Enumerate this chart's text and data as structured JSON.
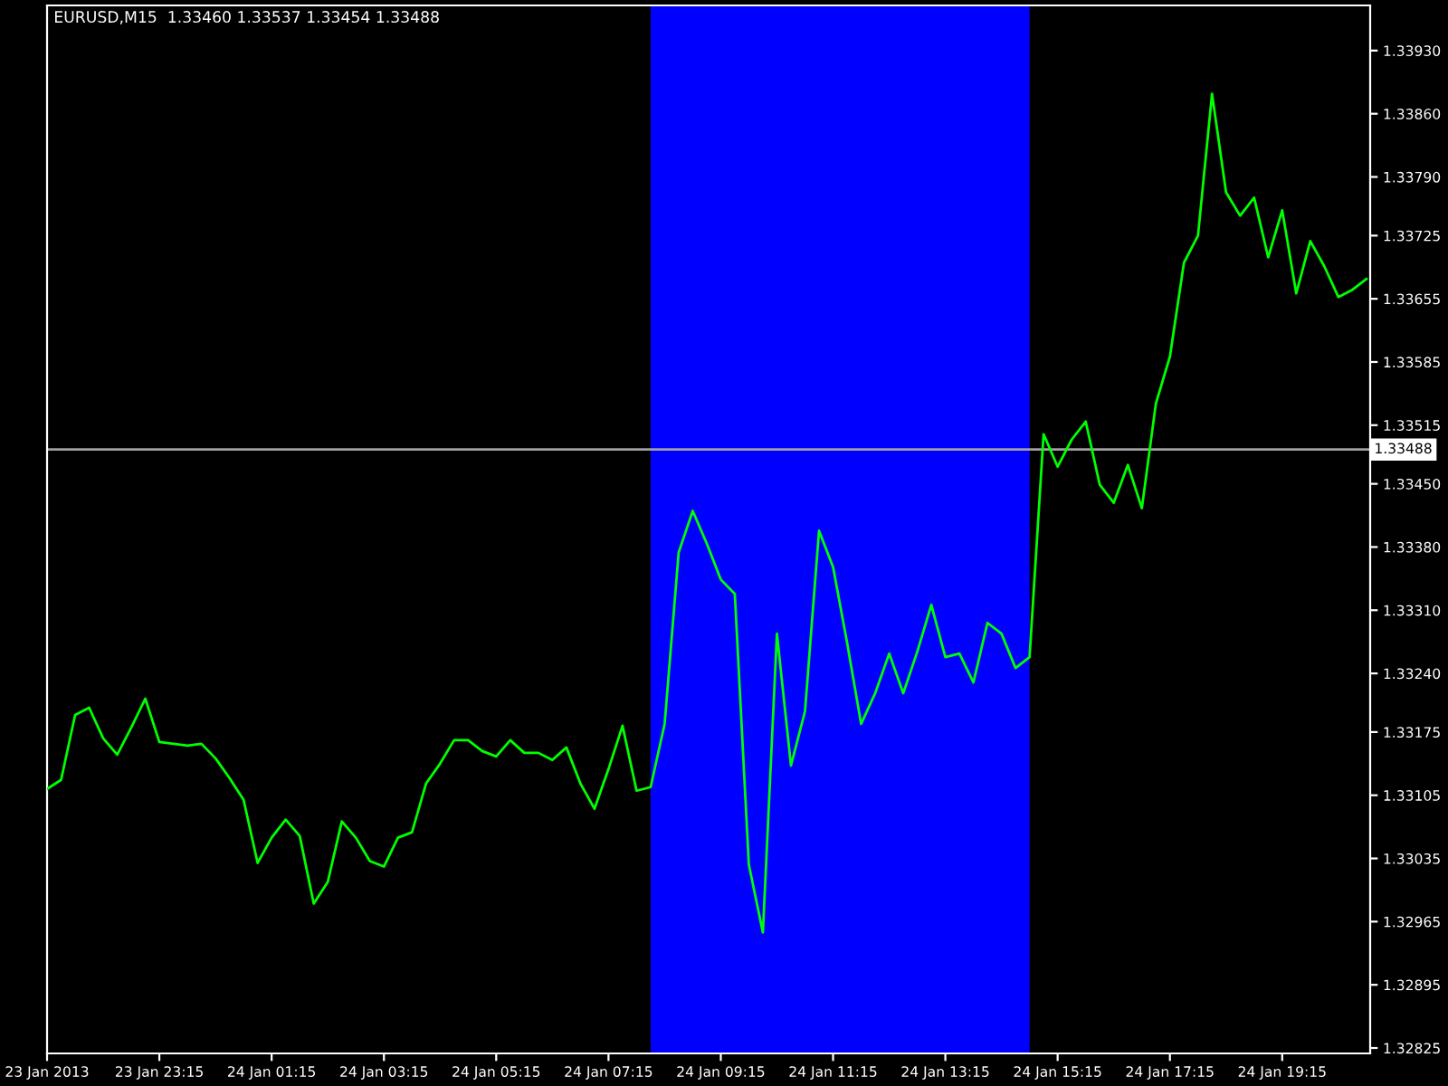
{
  "chart_data": {
    "type": "line",
    "title": "EURUSD,M15  1.33460 1.33537 1.33454 1.33488",
    "x": [
      "2013-01-23T21:15",
      "2013-01-23T21:30",
      "2013-01-23T21:45",
      "2013-01-23T22:00",
      "2013-01-23T22:15",
      "2013-01-23T22:30",
      "2013-01-23T22:45",
      "2013-01-23T23:00",
      "2013-01-23T23:15",
      "2013-01-23T23:30",
      "2013-01-23T23:45",
      "2013-01-24T00:00",
      "2013-01-24T00:15",
      "2013-01-24T00:30",
      "2013-01-24T00:45",
      "2013-01-24T01:00",
      "2013-01-24T01:15",
      "2013-01-24T01:30",
      "2013-01-24T01:45",
      "2013-01-24T02:00",
      "2013-01-24T02:15",
      "2013-01-24T02:30",
      "2013-01-24T02:45",
      "2013-01-24T03:00",
      "2013-01-24T03:15",
      "2013-01-24T03:30",
      "2013-01-24T03:45",
      "2013-01-24T04:00",
      "2013-01-24T04:15",
      "2013-01-24T04:30",
      "2013-01-24T04:45",
      "2013-01-24T05:00",
      "2013-01-24T05:15",
      "2013-01-24T05:30",
      "2013-01-24T05:45",
      "2013-01-24T06:00",
      "2013-01-24T06:15",
      "2013-01-24T06:30",
      "2013-01-24T06:45",
      "2013-01-24T07:00",
      "2013-01-24T07:15",
      "2013-01-24T07:30",
      "2013-01-24T07:45",
      "2013-01-24T08:00",
      "2013-01-24T08:15",
      "2013-01-24T08:30",
      "2013-01-24T08:45",
      "2013-01-24T09:00",
      "2013-01-24T09:15",
      "2013-01-24T09:30",
      "2013-01-24T09:45",
      "2013-01-24T10:00",
      "2013-01-24T10:15",
      "2013-01-24T10:30",
      "2013-01-24T10:45",
      "2013-01-24T11:00",
      "2013-01-24T11:15",
      "2013-01-24T11:30",
      "2013-01-24T11:45",
      "2013-01-24T12:00",
      "2013-01-24T12:15",
      "2013-01-24T12:30",
      "2013-01-24T12:45",
      "2013-01-24T13:00",
      "2013-01-24T13:15",
      "2013-01-24T13:30",
      "2013-01-24T13:45",
      "2013-01-24T14:00",
      "2013-01-24T14:15",
      "2013-01-24T14:30",
      "2013-01-24T14:45",
      "2013-01-24T15:00",
      "2013-01-24T15:15",
      "2013-01-24T15:30",
      "2013-01-24T15:45",
      "2013-01-24T16:00",
      "2013-01-24T16:15",
      "2013-01-24T16:30",
      "2013-01-24T16:45",
      "2013-01-24T17:00",
      "2013-01-24T17:15",
      "2013-01-24T17:30",
      "2013-01-24T17:45",
      "2013-01-24T18:00",
      "2013-01-24T18:15",
      "2013-01-24T18:30",
      "2013-01-24T18:45",
      "2013-01-24T19:00",
      "2013-01-24T19:15",
      "2013-01-24T19:30",
      "2013-01-24T19:45",
      "2013-01-24T20:00",
      "2013-01-24T20:15",
      "2013-01-24T20:30",
      "2013-01-24T20:45"
    ],
    "series": [
      {
        "color": "#00ff00",
        "values": [
          1.33112,
          1.33122,
          1.33194,
          1.33202,
          1.33168,
          1.3315,
          1.3318,
          1.33212,
          1.33164,
          1.33162,
          1.3316,
          1.33162,
          1.33146,
          1.33124,
          1.331,
          1.3303,
          1.33058,
          1.33078,
          1.3306,
          1.32985,
          1.33009,
          1.33076,
          1.33058,
          1.33032,
          1.33026,
          1.33058,
          1.33064,
          1.33118,
          1.3314,
          1.33166,
          1.33166,
          1.33154,
          1.33148,
          1.33166,
          1.33152,
          1.33152,
          1.33144,
          1.33158,
          1.33118,
          1.3309,
          1.33134,
          1.33182,
          1.3311,
          1.33114,
          1.33184,
          1.33374,
          1.3342,
          1.33384,
          1.33344,
          1.33328,
          1.33028,
          1.32953,
          1.33284,
          1.33138,
          1.33198,
          1.33398,
          1.33358,
          1.33274,
          1.33184,
          1.33218,
          1.33262,
          1.33218,
          1.33264,
          1.33316,
          1.33258,
          1.33262,
          1.3323,
          1.33296,
          1.33284,
          1.33246,
          1.33258,
          1.33505,
          1.33469,
          1.33499,
          1.33519,
          1.33449,
          1.33429,
          1.33471,
          1.33423,
          1.33539,
          1.33591,
          1.33695,
          1.33725,
          1.33882,
          1.33773,
          1.33747,
          1.33767,
          1.33701,
          1.33753,
          1.33661,
          1.33719,
          1.33691,
          1.33657,
          1.33665,
          1.33677
        ]
      }
    ],
    "xlim": [
      "2013-01-23T21:15",
      "2013-01-24T20:49"
    ],
    "xticks": [
      {
        "value": "2013-01-23T21:15",
        "label": "23 Jan 2013"
      },
      {
        "value": "2013-01-23T23:15",
        "label": "23 Jan 23:15"
      },
      {
        "value": "2013-01-24T01:15",
        "label": "24 Jan 01:15"
      },
      {
        "value": "2013-01-24T03:15",
        "label": "24 Jan 03:15"
      },
      {
        "value": "2013-01-24T05:15",
        "label": "24 Jan 05:15"
      },
      {
        "value": "2013-01-24T07:15",
        "label": "24 Jan 07:15"
      },
      {
        "value": "2013-01-24T09:15",
        "label": "24 Jan 09:15"
      },
      {
        "value": "2013-01-24T11:15",
        "label": "24 Jan 11:15"
      },
      {
        "value": "2013-01-24T13:15",
        "label": "24 Jan 13:15"
      },
      {
        "value": "2013-01-24T15:15",
        "label": "24 Jan 15:15"
      },
      {
        "value": "2013-01-24T17:15",
        "label": "24 Jan 17:15"
      },
      {
        "value": "2013-01-24T19:15",
        "label": "24 Jan 19:15"
      }
    ],
    "ylim": [
      1.32819,
      1.3398
    ],
    "yticks": [
      {
        "value": 1.32825,
        "label": "1.32825"
      },
      {
        "value": 1.32895,
        "label": "1.32895"
      },
      {
        "value": 1.32965,
        "label": "1.32965"
      },
      {
        "value": 1.33035,
        "label": "1.33035"
      },
      {
        "value": 1.33105,
        "label": "1.33105"
      },
      {
        "value": 1.33175,
        "label": "1.33175"
      },
      {
        "value": 1.3324,
        "label": "1.33240"
      },
      {
        "value": 1.3331,
        "label": "1.33310"
      },
      {
        "value": 1.3338,
        "label": "1.33380"
      },
      {
        "value": 1.3345,
        "label": "1.33450"
      },
      {
        "value": 1.33515,
        "label": "1.33515"
      },
      {
        "value": 1.33585,
        "label": "1.33585"
      },
      {
        "value": 1.33655,
        "label": "1.33655"
      },
      {
        "value": 1.33725,
        "label": "1.33725"
      },
      {
        "value": 1.3379,
        "label": "1.33790"
      },
      {
        "value": 1.3386,
        "label": "1.33860"
      },
      {
        "value": 1.3393,
        "label": "1.33930"
      }
    ],
    "ref_lines": [
      {
        "axis": "y",
        "value": 1.33488,
        "label": "1.33488",
        "color": "#a0a0a4"
      }
    ],
    "bands": [
      {
        "axis": "x",
        "from": "2013-01-24T08:00",
        "to": "2013-01-24T14:45",
        "color": "#0000ff"
      }
    ],
    "grid": false
  }
}
